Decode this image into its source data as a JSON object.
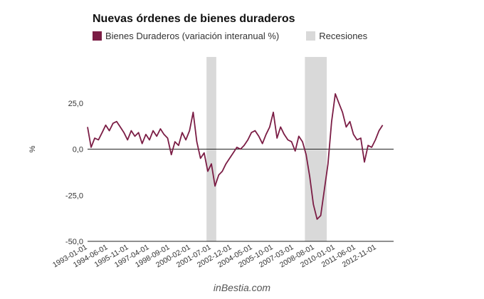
{
  "chart_data": {
    "type": "line",
    "title": "Nuevas órdenes de bienes duraderos",
    "ylabel": "%",
    "ylim": [
      -50,
      50
    ],
    "yticks": [
      -50,
      -25,
      0,
      25
    ],
    "ytick_labels": [
      "-50,0",
      "-25,0",
      "0,0",
      "25,0"
    ],
    "xlim": [
      "1993-01-01",
      "2014-01-01"
    ],
    "xticks": [
      "1993-01-01",
      "1994-06-01",
      "1995-11-01",
      "1997-04-01",
      "1998-09-01",
      "2000-02-01",
      "2001-07-01",
      "2002-12-01",
      "2004-05-01",
      "2005-10-01",
      "2007-03-01",
      "2008-08-01",
      "2010-01-01",
      "2011-06-01",
      "2012-11-01"
    ],
    "legend": {
      "position": "top-left"
    },
    "colors": {
      "series": "#7b1d45",
      "recession": "#d9d9d9"
    },
    "recessions": {
      "name": "Recesiones",
      "periods": [
        [
          "2001-03-01",
          "2001-11-01"
        ],
        [
          "2007-12-01",
          "2009-06-01"
        ]
      ]
    },
    "series": [
      {
        "name": "Bienes Duraderos (variación interanual %)",
        "x": [
          "1993-01-01",
          "1993-04-01",
          "1993-07-01",
          "1993-10-01",
          "1994-01-01",
          "1994-04-01",
          "1994-07-01",
          "1994-10-01",
          "1995-01-01",
          "1995-04-01",
          "1995-07-01",
          "1995-10-01",
          "1996-01-01",
          "1996-04-01",
          "1996-07-01",
          "1996-10-01",
          "1997-01-01",
          "1997-04-01",
          "1997-07-01",
          "1997-10-01",
          "1998-01-01",
          "1998-04-01",
          "1998-07-01",
          "1998-10-01",
          "1999-01-01",
          "1999-04-01",
          "1999-07-01",
          "1999-10-01",
          "2000-01-01",
          "2000-04-01",
          "2000-07-01",
          "2000-10-01",
          "2001-01-01",
          "2001-04-01",
          "2001-07-01",
          "2001-10-01",
          "2002-01-01",
          "2002-04-01",
          "2002-07-01",
          "2002-10-01",
          "2003-01-01",
          "2003-04-01",
          "2003-07-01",
          "2003-10-01",
          "2004-01-01",
          "2004-04-01",
          "2004-07-01",
          "2004-10-01",
          "2005-01-01",
          "2005-04-01",
          "2005-07-01",
          "2005-10-01",
          "2006-01-01",
          "2006-04-01",
          "2006-07-01",
          "2006-10-01",
          "2007-01-01",
          "2007-04-01",
          "2007-07-01",
          "2007-10-01",
          "2008-01-01",
          "2008-04-01",
          "2008-07-01",
          "2008-10-01",
          "2009-01-01",
          "2009-04-01",
          "2009-07-01",
          "2009-10-01",
          "2010-01-01",
          "2010-04-01",
          "2010-07-01",
          "2010-10-01",
          "2011-01-01",
          "2011-04-01",
          "2011-07-01",
          "2011-10-01",
          "2012-01-01",
          "2012-04-01",
          "2012-07-01",
          "2012-10-01",
          "2013-01-01",
          "2013-04-01"
        ],
        "values": [
          12,
          1,
          6,
          5,
          9,
          13,
          10,
          14,
          15,
          12,
          9,
          5,
          10,
          7,
          9,
          3,
          8,
          5,
          10,
          7,
          11,
          8,
          6,
          -3,
          4,
          2,
          9,
          5,
          10,
          20,
          4,
          -5,
          -2,
          -12,
          -8,
          -20,
          -14,
          -12,
          -8,
          -5,
          -2,
          1,
          0,
          2,
          5,
          9,
          10,
          7,
          3,
          8,
          12,
          20,
          6,
          12,
          8,
          5,
          4,
          -1,
          7,
          4,
          -3,
          -15,
          -30,
          -38,
          -36,
          -22,
          -8,
          15,
          30,
          25,
          20,
          12,
          15,
          8,
          5,
          6,
          -7,
          2,
          1,
          5,
          10,
          13
        ]
      }
    ]
  },
  "footer": "inBestia.com"
}
